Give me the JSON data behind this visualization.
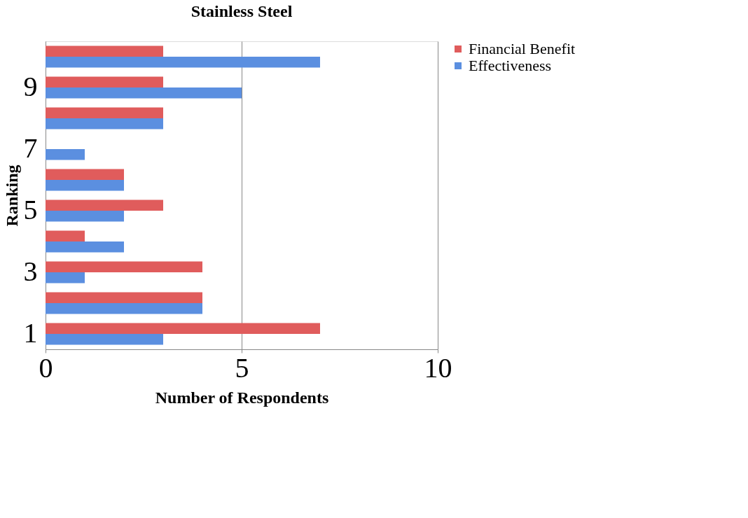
{
  "chart_data": {
    "type": "bar",
    "orientation": "horizontal",
    "title": "Stainless Steel",
    "xlabel": "Number of Respondents",
    "ylabel": "Ranking",
    "categories": [
      null,
      "9",
      null,
      "7",
      null,
      "5",
      null,
      "3",
      null,
      "1"
    ],
    "series": [
      {
        "name": "Financial Benefit",
        "color": "#e05c5c",
        "values": [
          3,
          3,
          3,
          0,
          2,
          3,
          1,
          4,
          4,
          7
        ]
      },
      {
        "name": "Effectiveness",
        "color": "#5b8fe0",
        "values": [
          7,
          5,
          3,
          1,
          2,
          2,
          2,
          1,
          4,
          3
        ]
      }
    ],
    "xlim": [
      0,
      10
    ],
    "xticks": [
      0,
      5,
      10
    ],
    "grid": "x",
    "legend": "right"
  }
}
